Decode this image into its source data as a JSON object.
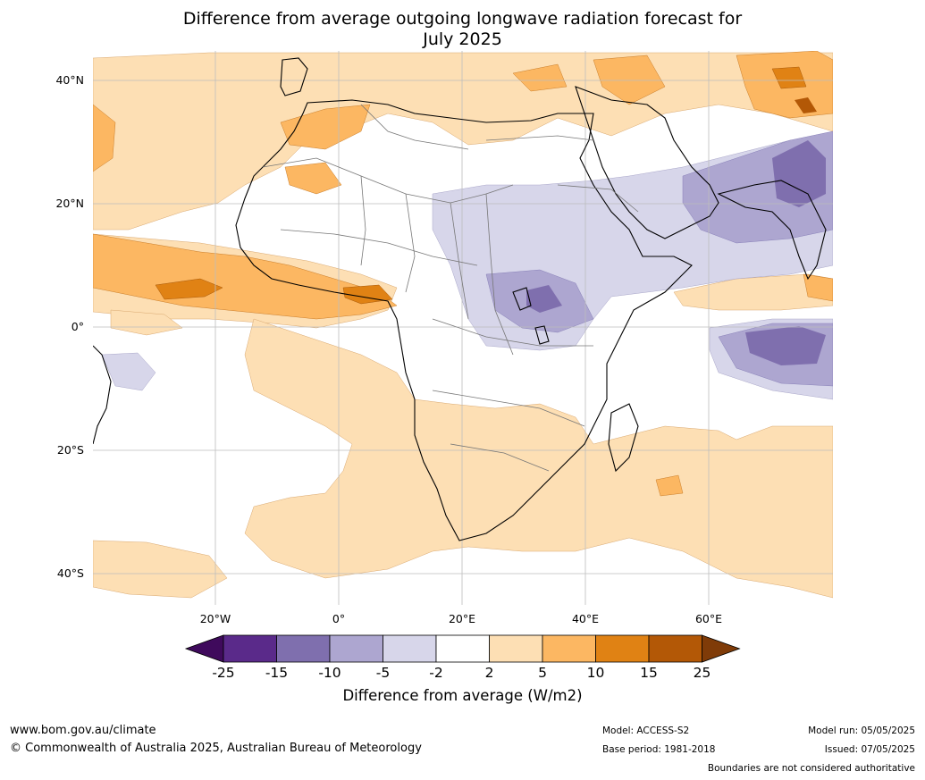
{
  "title_line1": "Difference from average outgoing longwave radiation forecast for",
  "title_line2": "July 2025",
  "lat_labels": [
    "40°N",
    "20°N",
    "0°",
    "20°S",
    "40°S"
  ],
  "lon_labels": [
    "20°W",
    "0°",
    "20°E",
    "40°E",
    "60°E"
  ],
  "colorbar": {
    "ticks": [
      "-25",
      "-15",
      "-10",
      "-5",
      "-2",
      "2",
      "5",
      "10",
      "15",
      "25"
    ],
    "colors": [
      "#3f0a5c",
      "#5a2a8a",
      "#7f6fae",
      "#ada6d0",
      "#d7d6ea",
      "#ffffff",
      "#fddfb4",
      "#fcb762",
      "#e08214",
      "#b35806",
      "#7f3b08"
    ],
    "label": "Difference from average (W/m2)"
  },
  "footer": {
    "url": "www.bom.gov.au/climate",
    "copyright": "© Commonwealth of Australia 2025, Australian Bureau of Meteorology",
    "model": "Model: ACCESS-S2",
    "base_period": "Base period: 1981-2018",
    "model_run": "Model run: 05/05/2025",
    "issued": "Issued: 07/05/2025",
    "disclaimer": "Boundaries are not considered authoritative"
  }
}
